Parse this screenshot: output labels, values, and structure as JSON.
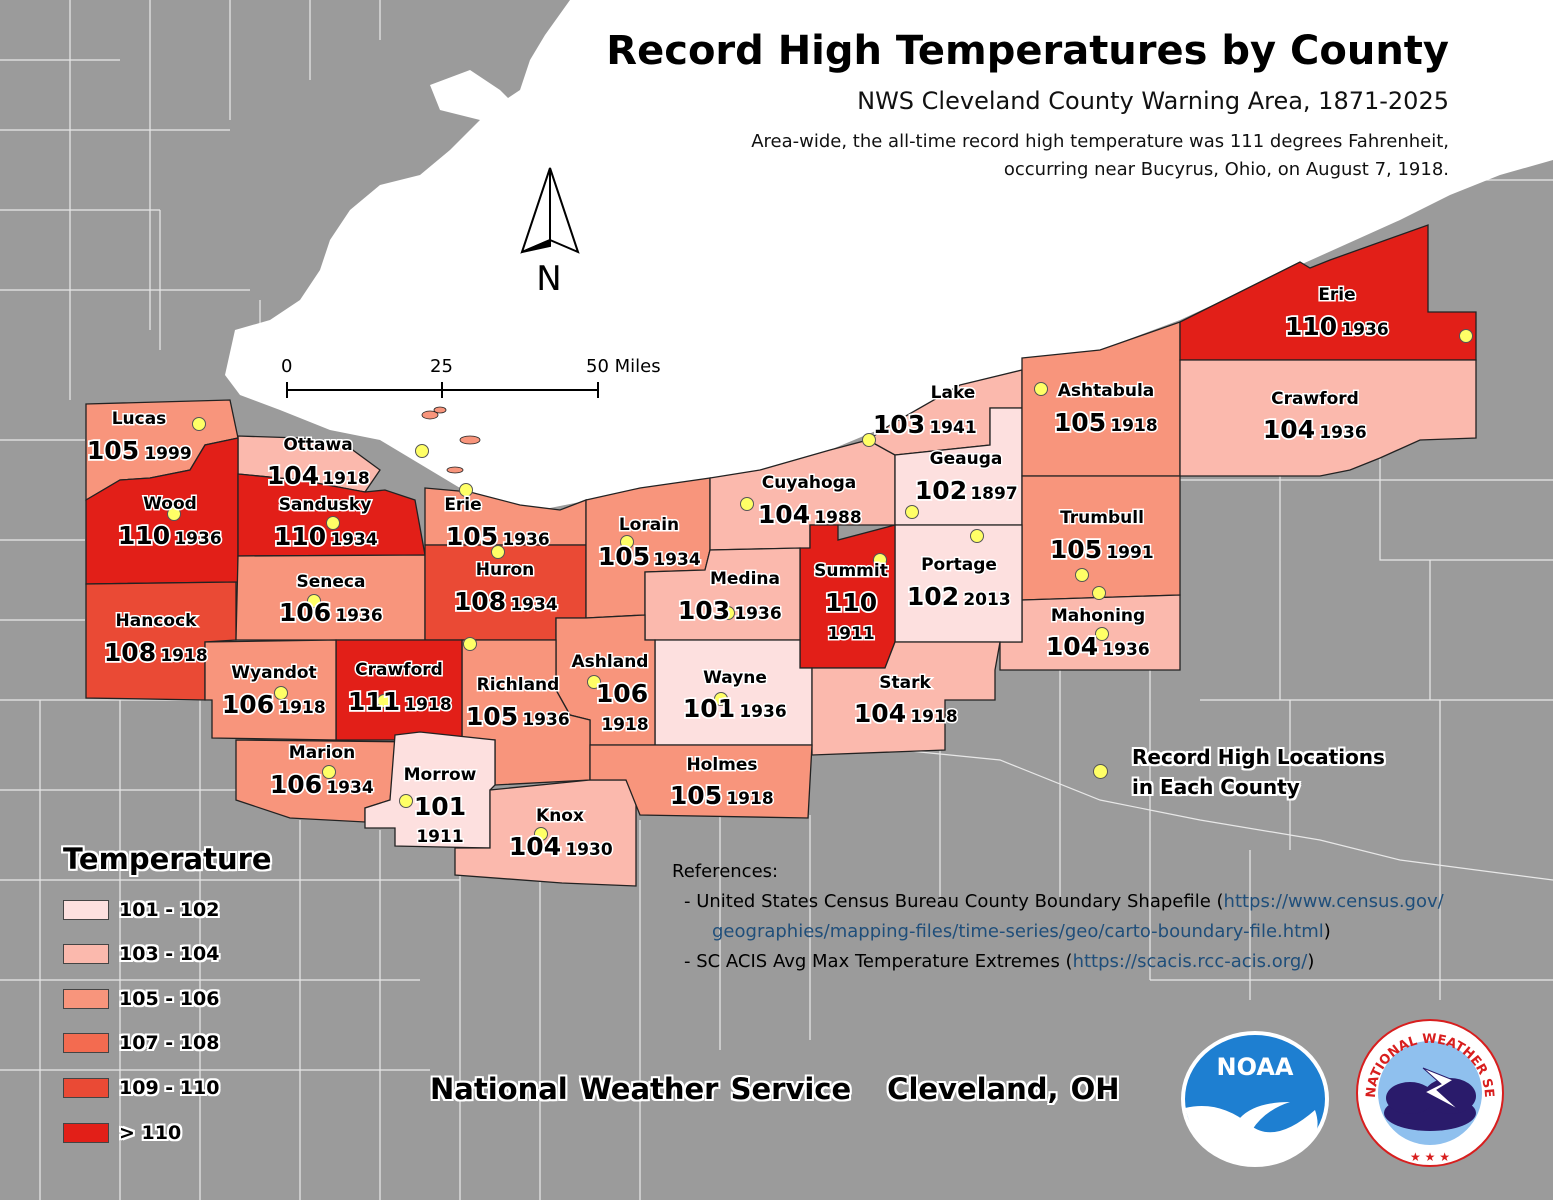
{
  "title": "Record High Temperatures by County",
  "subtitle": "NWS Cleveland County Warning Area, 1871-2025",
  "note_line1": "Area-wide, the all-time record high temperature was 111 degrees Fahrenheit,",
  "note_line2": "occurring near Bucyrus, Ohio, on August 7, 1918.",
  "north_label": "N",
  "scale": {
    "t0": "0",
    "t1": "25",
    "t2": "50 Miles"
  },
  "legend": {
    "title": "Temperature",
    "classes": [
      {
        "label": "101 - 102",
        "color": "#fde0df"
      },
      {
        "label": "103 - 104",
        "color": "#fbb9ad"
      },
      {
        "label": "105 - 106",
        "color": "#f8957c"
      },
      {
        "label": "107 - 108",
        "color": "#f36b50"
      },
      {
        "label": "109 - 110",
        "color": "#ea4a35"
      },
      {
        "label": "> 110",
        "color": "#e21f18"
      }
    ]
  },
  "point_legend": {
    "line1": "Record High Locations",
    "line2": "in Each County"
  },
  "references": {
    "heading": "References:",
    "ref1_prefix": "- United States Census Bureau County Boundary Shapefile (",
    "ref1_url_a": "https://www.census.gov/",
    "ref1_url_b": "geographies/mapping-files/time-series/geo/carto-boundary-file.html",
    "ref1_suffix": ")",
    "ref2_prefix": "- SC ACIS Avg Max Temperature Extremes (",
    "ref2_url": "https://scacis.rcc-acis.org/",
    "ref2_suffix": ")"
  },
  "office": {
    "name": "National Weather Service",
    "location": "Cleveland, OH"
  },
  "logos": {
    "noaa": "NOAA",
    "nws": "NATIONAL WEATHER SERVICE"
  },
  "colors": {
    "land": "#9b9b9b",
    "lake": "#ffffff",
    "border": "#ffffff"
  },
  "counties": [
    {
      "name": "Lucas",
      "temp": "105",
      "year": "1999"
    },
    {
      "name": "Ottawa",
      "temp": "104",
      "year": "1918"
    },
    {
      "name": "Wood",
      "temp": "110",
      "year": "1936"
    },
    {
      "name": "Sandusky",
      "temp": "110",
      "year": "1934"
    },
    {
      "name": "Erie",
      "temp": "105",
      "year": "1936"
    },
    {
      "name": "Hancock",
      "temp": "108",
      "year": "1918"
    },
    {
      "name": "Seneca",
      "temp": "106",
      "year": "1936"
    },
    {
      "name": "Huron",
      "temp": "108",
      "year": "1934"
    },
    {
      "name": "Lorain",
      "temp": "105",
      "year": "1934"
    },
    {
      "name": "Cuyahoga",
      "temp": "104",
      "year": "1988"
    },
    {
      "name": "Lake",
      "temp": "103",
      "year": "1941"
    },
    {
      "name": "Geauga",
      "temp": "102",
      "year": "1897"
    },
    {
      "name": "Ashtabula",
      "temp": "105",
      "year": "1918"
    },
    {
      "name": "Erie",
      "temp": "110",
      "year": "1936"
    },
    {
      "name": "Crawford",
      "temp": "104",
      "year": "1936"
    },
    {
      "name": "Trumbull",
      "temp": "105",
      "year": "1991"
    },
    {
      "name": "Mahoning",
      "temp": "104",
      "year": "1936"
    },
    {
      "name": "Portage",
      "temp": "102",
      "year": "2013"
    },
    {
      "name": "Summit",
      "temp": "110",
      "year": "1911"
    },
    {
      "name": "Medina",
      "temp": "103",
      "year": "1936"
    },
    {
      "name": "Wayne",
      "temp": "101",
      "year": "1936"
    },
    {
      "name": "Stark",
      "temp": "104",
      "year": "1918"
    },
    {
      "name": "Ashland",
      "temp": "106",
      "year": "1918"
    },
    {
      "name": "Richland",
      "temp": "105",
      "year": "1936"
    },
    {
      "name": "Crawford",
      "temp": "111",
      "year": "1918"
    },
    {
      "name": "Wyandot",
      "temp": "106",
      "year": "1918"
    },
    {
      "name": "Marion",
      "temp": "106",
      "year": "1934"
    },
    {
      "name": "Morrow",
      "temp": "101",
      "year": "1911"
    },
    {
      "name": "Knox",
      "temp": "104",
      "year": "1930"
    },
    {
      "name": "Holmes",
      "temp": "105",
      "year": "1918"
    }
  ]
}
